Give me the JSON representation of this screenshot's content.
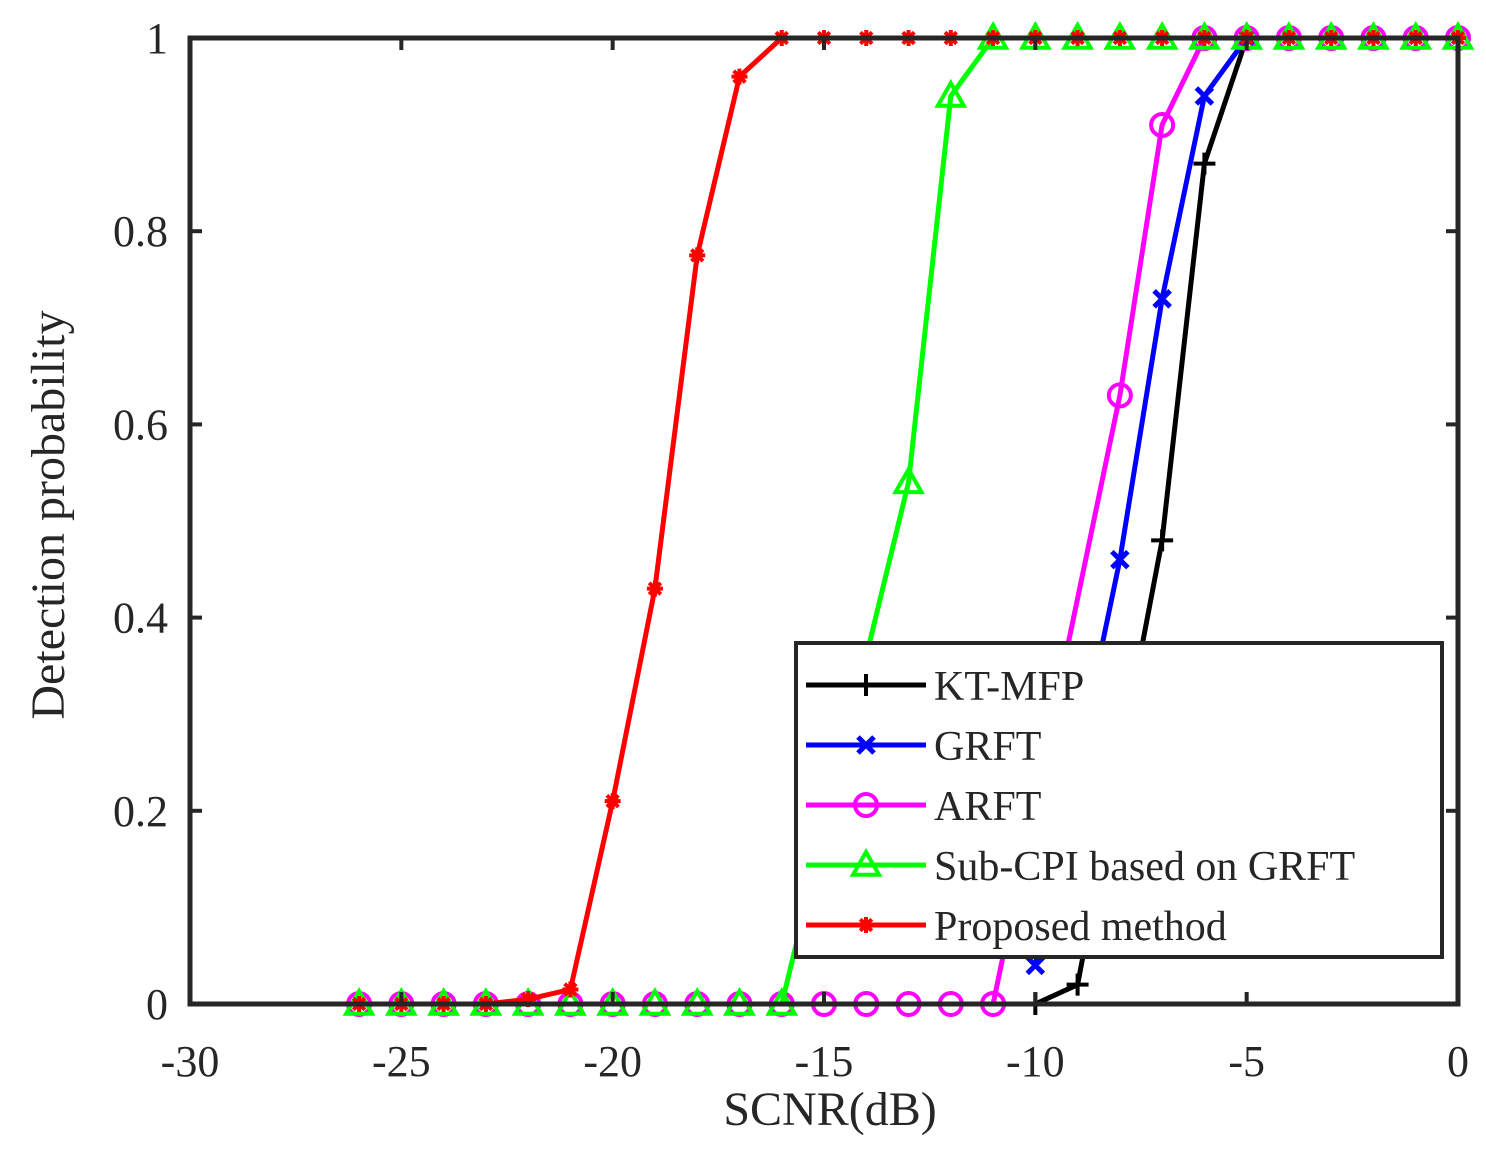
{
  "chart_data": {
    "type": "line",
    "title": "",
    "xlabel": "SCNR(dB)",
    "ylabel": "Detection probability",
    "xlim": [
      -30,
      0
    ],
    "ylim": [
      0,
      1
    ],
    "xticks": [
      -30,
      -25,
      -20,
      -15,
      -10,
      -5,
      0
    ],
    "yticks": [
      0,
      0.2,
      0.4,
      0.6,
      0.8,
      1
    ],
    "xtick_labels": [
      "-30",
      "-25",
      "-20",
      "-15",
      "-10",
      "-5",
      "0"
    ],
    "ytick_labels": [
      "0",
      "0.2",
      "0.4",
      "0.6",
      "0.8",
      "1"
    ],
    "grid": false,
    "legend_position": "bottom-right",
    "series": [
      {
        "name": "KT-MFP",
        "color": "#000000",
        "marker": "plus",
        "x": [
          -10,
          -9,
          -7,
          -6,
          -5
        ],
        "values": [
          0,
          0.02,
          0.48,
          0.87,
          1.0
        ]
      },
      {
        "name": "GRFT",
        "color": "#0000ff",
        "marker": "cross",
        "x": [
          -10,
          -8,
          -7,
          -6,
          -5
        ],
        "values": [
          0.04,
          0.46,
          0.73,
          0.94,
          1.0
        ]
      },
      {
        "name": "ARFT",
        "color": "#ff00ff",
        "marker": "circle",
        "x": [
          -26,
          -25,
          -24,
          -23,
          -22,
          -21,
          -20,
          -19,
          -18,
          -17,
          -16,
          -15,
          -14,
          -13,
          -12,
          -11,
          -8,
          -7,
          -6,
          -5,
          -4,
          -3,
          -2,
          -1,
          0
        ],
        "values": [
          0,
          0,
          0,
          0,
          0,
          0,
          0,
          0,
          0,
          0,
          0,
          0,
          0,
          0,
          0,
          0,
          0.63,
          0.91,
          1.0,
          1.0,
          1.0,
          1.0,
          1.0,
          1.0,
          1.0
        ]
      },
      {
        "name": "Sub-CPI based on GRFT",
        "color": "#00ff00",
        "marker": "triangle",
        "x": [
          -26,
          -25,
          -24,
          -23,
          -22,
          -21,
          -20,
          -19,
          -18,
          -17,
          -16,
          -13,
          -12,
          -11,
          -10,
          -9,
          -8,
          -7,
          -6,
          -5,
          -4,
          -3,
          -2,
          -1,
          0
        ],
        "values": [
          0,
          0,
          0,
          0,
          0,
          0,
          0,
          0,
          0,
          0,
          0,
          0.54,
          0.94,
          1.0,
          1.0,
          1.0,
          1.0,
          1.0,
          1.0,
          1.0,
          1.0,
          1.0,
          1.0,
          1.0,
          1.0
        ]
      },
      {
        "name": "Proposed method",
        "color": "#ff0000",
        "marker": "star",
        "x": [
          -26,
          -25,
          -24,
          -23,
          -22,
          -21,
          -20,
          -19,
          -18,
          -17,
          -16,
          -15,
          -14,
          -13,
          -12,
          -11,
          -10,
          -9,
          -8,
          -7,
          -6,
          -5,
          -4,
          -3,
          -2,
          -1,
          0
        ],
        "values": [
          0,
          0,
          0,
          0,
          0.005,
          0.015,
          0.21,
          0.43,
          0.775,
          0.96,
          1.0,
          1.0,
          1.0,
          1.0,
          1.0,
          1.0,
          1.0,
          1.0,
          1.0,
          1.0,
          1.0,
          1.0,
          1.0,
          1.0,
          1.0,
          1.0,
          1.0
        ]
      }
    ]
  }
}
